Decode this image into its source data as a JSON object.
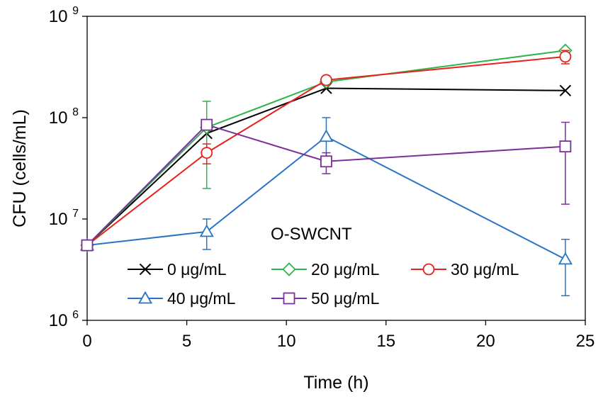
{
  "chart_data": {
    "type": "line",
    "title": "",
    "xlabel": "Time (h)",
    "ylabel": "CFU (cells/mL)",
    "xlim": [
      0,
      25
    ],
    "x_ticks": [
      0,
      5,
      10,
      15,
      20,
      25
    ],
    "y_scale": "log",
    "ylim": [
      1000000,
      1000000000
    ],
    "y_ticks": [
      {
        "value": 1000000,
        "base": "10",
        "exponent": "6"
      },
      {
        "value": 10000000,
        "base": "10",
        "exponent": "7"
      },
      {
        "value": 100000000,
        "base": "10",
        "exponent": "8"
      },
      {
        "value": 1000000000,
        "base": "10",
        "exponent": "9"
      }
    ],
    "legend_title": "O-SWCNT",
    "legend_position": "lower-center",
    "series": [
      {
        "name": "0 μg/mL",
        "color": "#000000",
        "marker": "x",
        "x": [
          0,
          6,
          12,
          24
        ],
        "y": [
          5500000,
          70000000,
          195000000,
          185000000
        ],
        "err_low": [
          null,
          null,
          null,
          null
        ],
        "err_high": [
          null,
          null,
          null,
          null
        ]
      },
      {
        "name": "20 μg/mL",
        "color": "#2fb34a",
        "marker": "diamond",
        "x": [
          0,
          6,
          12,
          24
        ],
        "y": [
          5500000,
          80000000,
          225000000,
          460000000
        ],
        "err_low": [
          null,
          20000000,
          null,
          null
        ],
        "err_high": [
          null,
          145000000,
          null,
          null
        ]
      },
      {
        "name": "30 μg/mL",
        "color": "#e8211c",
        "marker": "circle",
        "x": [
          0,
          6,
          12,
          24
        ],
        "y": [
          5500000,
          45000000,
          235000000,
          400000000
        ],
        "err_low": [
          null,
          35000000,
          null,
          340000000
        ],
        "err_high": [
          null,
          55000000,
          null,
          460000000
        ]
      },
      {
        "name": "40 μg/mL",
        "color": "#2a74c4",
        "marker": "triangle",
        "x": [
          0,
          6,
          12,
          24
        ],
        "y": [
          5500000,
          7500000,
          65000000,
          4000000
        ],
        "err_low": [
          null,
          5000000,
          35000000,
          1750000
        ],
        "err_high": [
          null,
          10000000,
          100000000,
          6300000
        ]
      },
      {
        "name": "50 μg/mL",
        "color": "#7a2f9a",
        "marker": "square",
        "x": [
          0,
          6,
          12,
          24
        ],
        "y": [
          5500000,
          85000000,
          37000000,
          52000000
        ],
        "err_low": [
          null,
          null,
          28000000,
          14000000
        ],
        "err_high": [
          null,
          null,
          45000000,
          90000000
        ]
      }
    ]
  }
}
